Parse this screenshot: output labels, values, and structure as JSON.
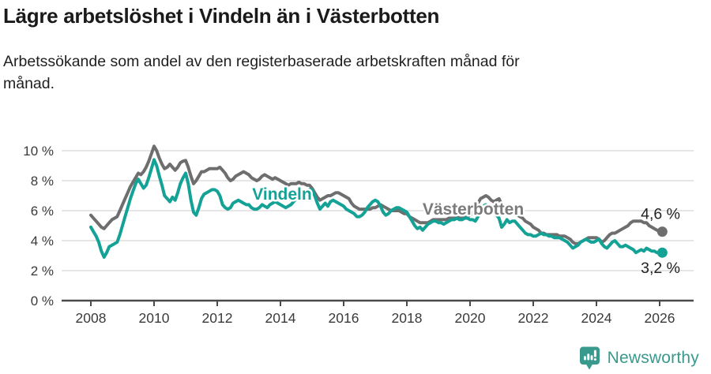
{
  "title": "Lägre arbetslöshet i Vindeln än i Västerbotten",
  "subtitle": {
    "line1": "Arbetssökande som andel av den registerbaserade arbetskraften månad för",
    "line2": "månad."
  },
  "footer": {
    "brand": "Newsworthy",
    "logo_icon": "bar-chart-speech-bubble-icon"
  },
  "colors": {
    "title_text": "#1a1a1a",
    "vindeln_teal": "#14a296",
    "vasterbotten_gray": "#6e6e6e",
    "vasterbotten_label_gray": "#7b7b7b",
    "grid": "#d8d8d8",
    "axis": "#4a4a4a",
    "axis_text": "#3a3a3a",
    "value_label_text": "#222222",
    "brand_teal": "#38998d",
    "background": "#ffffff"
  },
  "chart_data": {
    "type": "line",
    "title": "Lägre arbetslöshet i Vindeln än i Västerbotten",
    "xlabel": "",
    "ylabel": "Arbetssökande som andel av den registerbaserade arbetskraften (%)",
    "x_unit": "month",
    "x_start_year": 2008,
    "x_end_label": "2026-02",
    "x_ticks": [
      2008,
      2010,
      2012,
      2014,
      2016,
      2018,
      2020,
      2022,
      2024,
      2026
    ],
    "ylim": [
      0,
      10
    ],
    "y_ticks": [
      0,
      2,
      4,
      6,
      8,
      10
    ],
    "y_tick_suffix": " %",
    "grid": "horizontal",
    "legend_position": "inline-labels",
    "series": [
      {
        "name": "Västerbotten",
        "color": "#6e6e6e",
        "label_color": "#7b7b7b",
        "end_label": "4,6 %",
        "end_label_position": "above",
        "label_x": 2020.1,
        "label_y": 5.74,
        "values": [
          5.7,
          5.5,
          5.3,
          5.1,
          4.9,
          4.8,
          5.0,
          5.2,
          5.4,
          5.5,
          5.6,
          6.0,
          6.4,
          6.8,
          7.2,
          7.6,
          7.9,
          8.2,
          8.5,
          8.4,
          8.6,
          8.9,
          9.3,
          9.8,
          10.3,
          10.0,
          9.5,
          9.1,
          8.8,
          8.9,
          9.1,
          8.9,
          8.7,
          8.9,
          9.2,
          9.3,
          9.35,
          8.9,
          8.3,
          7.8,
          8.0,
          8.3,
          8.6,
          8.6,
          8.7,
          8.8,
          8.8,
          8.8,
          8.8,
          8.9,
          8.7,
          8.5,
          8.2,
          8.0,
          8.1,
          8.3,
          8.4,
          8.5,
          8.6,
          8.5,
          8.4,
          8.2,
          8.1,
          8.0,
          8.1,
          8.3,
          8.4,
          8.3,
          8.2,
          8.1,
          8.2,
          8.1,
          8.0,
          7.9,
          7.8,
          7.7,
          7.8,
          7.8,
          7.8,
          7.9,
          7.8,
          7.8,
          7.7,
          7.7,
          7.5,
          7.2,
          6.9,
          6.7,
          6.8,
          6.9,
          7.0,
          7.0,
          7.1,
          7.2,
          7.2,
          7.1,
          7.0,
          6.9,
          6.8,
          6.5,
          6.3,
          6.2,
          6.1,
          6.1,
          6.1,
          6.1,
          6.1,
          6.2,
          6.2,
          6.3,
          6.4,
          6.3,
          6.2,
          6.1,
          6.0,
          6.0,
          6.0,
          6.0,
          5.9,
          5.8,
          5.8,
          5.6,
          5.5,
          5.4,
          5.3,
          5.2,
          5.2,
          5.2,
          5.2,
          5.3,
          5.4,
          5.4,
          5.4,
          5.4,
          5.4,
          5.4,
          5.5,
          5.5,
          5.5,
          5.6,
          5.5,
          5.5,
          5.6,
          5.6,
          5.7,
          5.8,
          6.1,
          6.5,
          6.8,
          6.9,
          7.0,
          6.9,
          6.7,
          6.6,
          6.7,
          6.8,
          6.4,
          6.3,
          6.1,
          6.0,
          5.9,
          5.8,
          5.7,
          5.6,
          5.5,
          5.3,
          5.2,
          5.1,
          4.9,
          4.8,
          4.7,
          4.5,
          4.5,
          4.4,
          4.4,
          4.4,
          4.4,
          4.4,
          4.3,
          4.3,
          4.3,
          4.2,
          4.1,
          3.9,
          3.8,
          3.8,
          3.9,
          4.0,
          4.1,
          4.2,
          4.2,
          4.2,
          4.2,
          4.1,
          3.9,
          4.0,
          4.2,
          4.4,
          4.5,
          4.5,
          4.6,
          4.7,
          4.8,
          4.9,
          5.0,
          5.2,
          5.3,
          5.3,
          5.3,
          5.3,
          5.2,
          5.2,
          5.0,
          4.9,
          4.8,
          4.7,
          4.6,
          4.6
        ]
      },
      {
        "name": "Vindeln",
        "color": "#14a296",
        "label_color": "#14a296",
        "end_label": "3,2 %",
        "end_label_position": "below",
        "label_x": 2014.05,
        "label_y": 6.74,
        "values": [
          4.9,
          4.6,
          4.3,
          3.9,
          3.3,
          2.9,
          3.2,
          3.6,
          3.7,
          3.8,
          3.9,
          4.4,
          5.0,
          5.6,
          6.2,
          6.8,
          7.3,
          7.8,
          8.1,
          7.8,
          7.5,
          7.7,
          8.2,
          8.8,
          9.4,
          9.0,
          8.3,
          7.7,
          7.0,
          6.8,
          6.6,
          6.9,
          6.7,
          7.2,
          7.8,
          8.2,
          8.5,
          7.8,
          6.7,
          5.9,
          5.7,
          6.2,
          6.8,
          7.1,
          7.2,
          7.3,
          7.4,
          7.4,
          7.3,
          7.0,
          6.4,
          6.2,
          6.1,
          6.2,
          6.5,
          6.6,
          6.7,
          6.6,
          6.5,
          6.4,
          6.4,
          6.2,
          6.1,
          6.1,
          6.2,
          6.4,
          6.3,
          6.2,
          6.4,
          6.5,
          6.6,
          6.5,
          6.4,
          6.3,
          6.2,
          6.3,
          6.4,
          6.6,
          6.8,
          7.0,
          7.1,
          7.2,
          7.3,
          7.4,
          7.4,
          7.0,
          6.5,
          6.1,
          6.3,
          6.5,
          6.3,
          6.6,
          6.7,
          6.6,
          6.5,
          6.4,
          6.3,
          6.1,
          6.0,
          5.9,
          5.8,
          5.6,
          5.6,
          5.7,
          5.9,
          6.2,
          6.4,
          6.6,
          6.7,
          6.6,
          6.3,
          5.9,
          5.7,
          5.8,
          6.0,
          6.1,
          6.2,
          6.2,
          6.1,
          6.0,
          5.9,
          5.6,
          5.3,
          5.0,
          4.8,
          4.9,
          4.7,
          4.9,
          5.1,
          5.2,
          5.3,
          5.3,
          5.2,
          5.2,
          5.1,
          5.2,
          5.3,
          5.4,
          5.4,
          5.5,
          5.4,
          5.4,
          5.5,
          5.5,
          5.4,
          5.4,
          5.3,
          5.6,
          6.0,
          6.3,
          6.4,
          6.3,
          6.1,
          5.9,
          5.7,
          5.5,
          4.9,
          5.1,
          5.4,
          5.2,
          5.3,
          5.3,
          5.1,
          4.9,
          4.7,
          4.5,
          4.4,
          4.4,
          4.3,
          4.3,
          4.4,
          4.5,
          4.4,
          4.4,
          4.3,
          4.3,
          4.2,
          4.2,
          4.2,
          4.1,
          4.0,
          3.9,
          3.7,
          3.5,
          3.6,
          3.7,
          3.9,
          4.0,
          4.1,
          4.0,
          3.9,
          3.9,
          4.0,
          4.1,
          3.8,
          3.6,
          3.5,
          3.7,
          3.9,
          4.0,
          3.8,
          3.6,
          3.6,
          3.7,
          3.6,
          3.5,
          3.4,
          3.2,
          3.3,
          3.4,
          3.3,
          3.5,
          3.4,
          3.3,
          3.3,
          3.2,
          3.2,
          3.2
        ]
      }
    ]
  }
}
